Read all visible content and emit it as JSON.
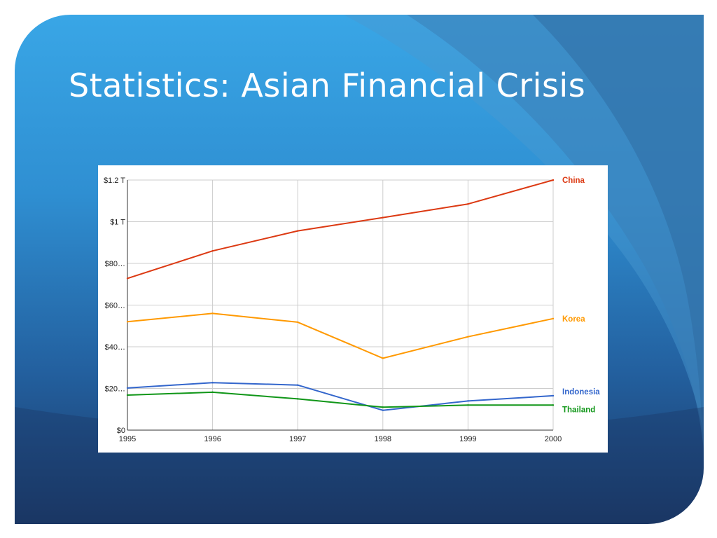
{
  "slide": {
    "title": "Statistics: Asian Financial Crisis"
  },
  "chart_data": {
    "type": "line",
    "x": [
      "1995",
      "1996",
      "1997",
      "1998",
      "1999",
      "2000"
    ],
    "y_ticks": [
      "$0",
      "$20…",
      "$40…",
      "$60…",
      "$80…",
      "$1 T",
      "$1.2 T"
    ],
    "ylim": [
      0,
      1200
    ],
    "grid": true,
    "legend": "right, labels at line ends",
    "series": [
      {
        "name": "China",
        "color": "#dc3912",
        "values": [
          728,
          860,
          956,
          1020,
          1085,
          1200
        ]
      },
      {
        "name": "Korea",
        "color": "#ff9900",
        "values": [
          520,
          560,
          518,
          345,
          448,
          535
        ]
      },
      {
        "name": "Indonesia",
        "color": "#3366cc",
        "values": [
          202,
          228,
          216,
          95,
          140,
          165
        ]
      },
      {
        "name": "Thailand",
        "color": "#109618",
        "values": [
          168,
          182,
          150,
          110,
          120,
          120
        ]
      }
    ]
  }
}
